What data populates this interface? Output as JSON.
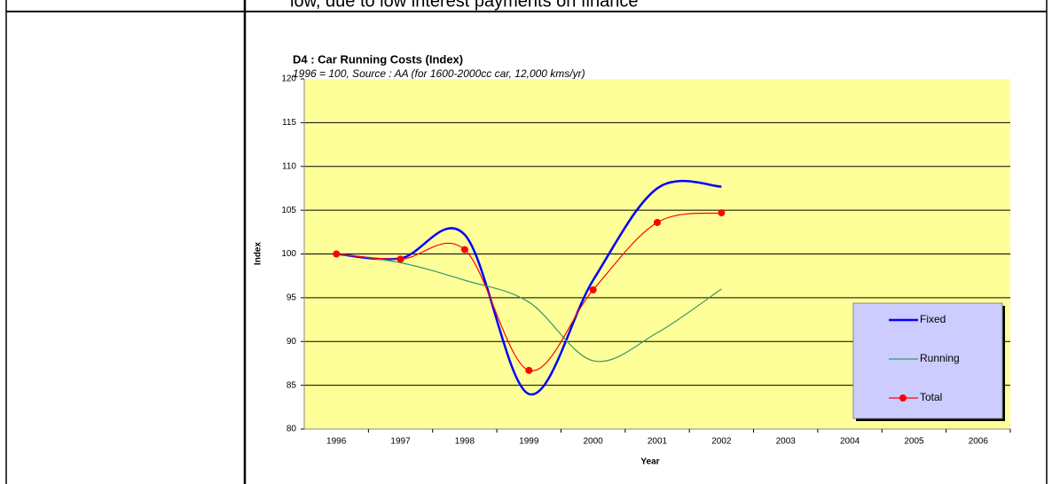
{
  "header_text": "low, due to low interest payments on finance",
  "chart_data": {
    "type": "line",
    "title": "D4 : Car Running Costs (Index)",
    "subtitle": "1996 = 100, Source : AA (for 1600-2000cc car, 12,000 kms/yr)",
    "x_label": "Year",
    "y_label": "Index",
    "categories": [
      "1996",
      "1997",
      "1998",
      "1999",
      "2000",
      "2001",
      "2002",
      "2003",
      "2004",
      "2005",
      "2006"
    ],
    "series": [
      {
        "name": "Fixed",
        "color": "#0000ff",
        "width": 2.5,
        "marker": false,
        "values": [
          100,
          99.5,
          102.2,
          84,
          97,
          107.5,
          107.7,
          null,
          null,
          null,
          null
        ]
      },
      {
        "name": "Running",
        "color": "#339966",
        "width": 1.2,
        "marker": false,
        "values": [
          100,
          99,
          97,
          94.5,
          87.8,
          91,
          96,
          null,
          null,
          null,
          null
        ]
      },
      {
        "name": "Total",
        "color": "#ff0000",
        "width": 1.2,
        "marker": true,
        "values": [
          100,
          99.4,
          100.5,
          86.7,
          95.9,
          103.6,
          104.7,
          null,
          null,
          null,
          null
        ]
      }
    ],
    "ylim": [
      80,
      120
    ],
    "yticks": [
      80,
      85,
      90,
      95,
      100,
      105,
      110,
      115,
      120
    ],
    "grid": true,
    "plot_color": "#ffff99",
    "legend_color": "#ccccff",
    "legend": "lower right"
  }
}
